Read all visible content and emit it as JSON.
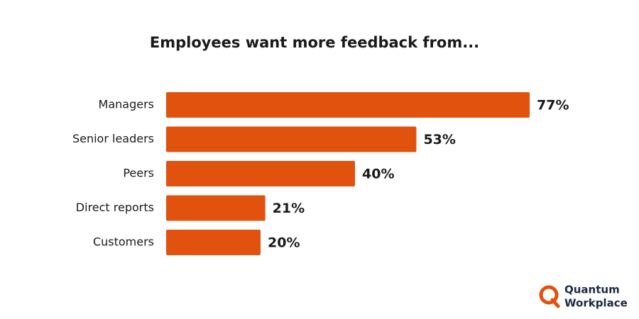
{
  "chart_data": {
    "type": "bar",
    "orientation": "horizontal",
    "title": "Employees want more feedback from...",
    "categories": [
      "Managers",
      "Senior leaders",
      "Peers",
      "Direct reports",
      "Customers"
    ],
    "values": [
      77,
      53,
      40,
      21,
      20
    ],
    "value_labels": [
      "77%",
      "53%",
      "40%",
      "21%",
      "20%"
    ],
    "color": "#e2520f"
  },
  "logo": {
    "line1": "Quantum",
    "line2": "Workplace"
  }
}
